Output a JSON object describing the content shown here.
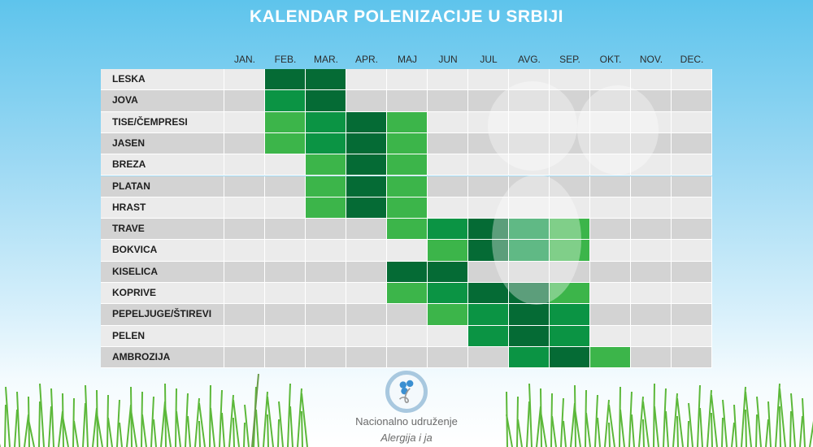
{
  "title": "KALENDAR POLENIZACIJE U SRBIJI",
  "chart_data": {
    "type": "heatmap",
    "title": "KALENDAR POLENIZACIJE U SRBIJI",
    "months": [
      "JAN.",
      "FEB.",
      "MAR.",
      "APR.",
      "MAJ",
      "JUN",
      "JUL",
      "AVG.",
      "SEP.",
      "OKT.",
      "NOV.",
      "DEC."
    ],
    "levels_legend": {
      "0": "none",
      "1": "low",
      "2": "medium",
      "3": "high"
    },
    "colors": {
      "0_odd": "#ebebeb",
      "0_even": "#d3d3d3",
      "1": "#3cb54a",
      "2": "#0b9444",
      "3": "#056b35"
    },
    "rows": [
      {
        "name": "LESKA",
        "values": [
          0,
          3,
          3,
          0,
          0,
          0,
          0,
          0,
          0,
          0,
          0,
          0
        ]
      },
      {
        "name": "JOVA",
        "values": [
          0,
          2,
          3,
          0,
          0,
          0,
          0,
          0,
          0,
          0,
          0,
          0
        ]
      },
      {
        "name": "TISE/ČEMPRESI",
        "values": [
          0,
          1,
          2,
          3,
          1,
          0,
          0,
          0,
          0,
          0,
          0,
          0
        ]
      },
      {
        "name": "JASEN",
        "values": [
          0,
          1,
          2,
          3,
          1,
          0,
          0,
          0,
          0,
          0,
          0,
          0
        ]
      },
      {
        "name": "BREZA",
        "values": [
          0,
          0,
          1,
          3,
          1,
          0,
          0,
          0,
          0,
          0,
          0,
          0
        ]
      },
      {
        "name": "PLATAN",
        "values": [
          0,
          0,
          1,
          3,
          1,
          0,
          0,
          0,
          0,
          0,
          0,
          0
        ]
      },
      {
        "name": "HRAST",
        "values": [
          0,
          0,
          1,
          3,
          1,
          0,
          0,
          0,
          0,
          0,
          0,
          0
        ]
      },
      {
        "name": "TRAVE",
        "values": [
          0,
          0,
          0,
          0,
          1,
          2,
          3,
          2,
          1,
          0,
          0,
          0
        ]
      },
      {
        "name": "BOKVICA",
        "values": [
          0,
          0,
          0,
          0,
          0,
          1,
          3,
          2,
          1,
          0,
          0,
          0
        ]
      },
      {
        "name": "KISELICA",
        "values": [
          0,
          0,
          0,
          0,
          3,
          3,
          0,
          0,
          0,
          0,
          0,
          0
        ]
      },
      {
        "name": "KOPRIVE",
        "values": [
          0,
          0,
          0,
          0,
          1,
          2,
          3,
          3,
          1,
          0,
          0,
          0
        ]
      },
      {
        "name": "PEPELJUGE/ŠTIREVI",
        "values": [
          0,
          0,
          0,
          0,
          0,
          1,
          2,
          3,
          2,
          0,
          0,
          0
        ]
      },
      {
        "name": "PELEN",
        "values": [
          0,
          0,
          0,
          0,
          0,
          0,
          2,
          3,
          2,
          0,
          0,
          0
        ]
      },
      {
        "name": "AMBROZIJA",
        "values": [
          0,
          0,
          0,
          0,
          0,
          0,
          0,
          2,
          3,
          1,
          0,
          0
        ]
      }
    ]
  },
  "logo": {
    "line1": "Nacionalno udruženje",
    "line2": "Alergija i ja"
  }
}
